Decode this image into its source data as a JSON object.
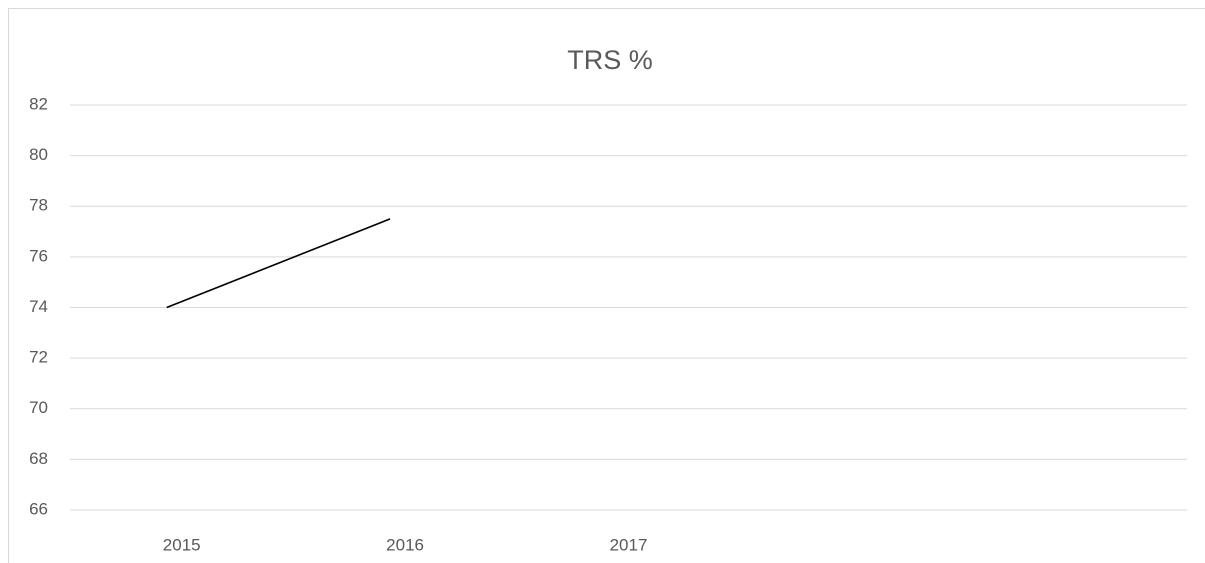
{
  "chart_data": {
    "type": "line",
    "title": "TRS %",
    "categories": [
      "2015",
      "2016",
      "2017",
      null,
      null
    ],
    "series": [
      {
        "name": "TRS %",
        "color": "#000000",
        "values": [
          74,
          77.5,
          null,
          null,
          null
        ]
      }
    ],
    "ylim": [
      66,
      82
    ],
    "yticks": [
      66,
      68,
      70,
      72,
      74,
      76,
      78,
      80,
      82
    ],
    "grid": true
  }
}
